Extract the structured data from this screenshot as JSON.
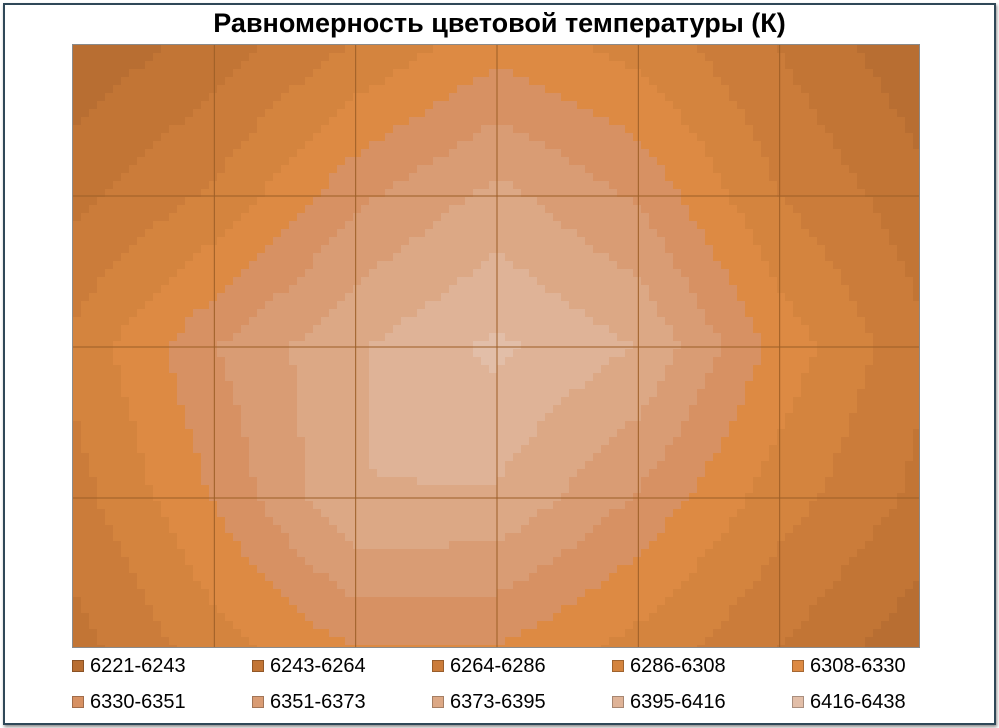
{
  "chart_data": {
    "type": "heatmap",
    "title": "Равномерность цветовой температуры (К)",
    "xlabel": "",
    "ylabel": "",
    "unit": "К",
    "grid_size": [
      7,
      5
    ],
    "grid": true,
    "legend_position": "bottom",
    "values": [
      [
        6226,
        6251,
        6288,
        6322,
        6300,
        6263,
        6226
      ],
      [
        6258,
        6290,
        6346,
        6380,
        6348,
        6286,
        6250
      ],
      [
        6292,
        6350,
        6393,
        6421,
        6394,
        6322,
        6268
      ],
      [
        6276,
        6332,
        6395,
        6392,
        6348,
        6296,
        6258
      ],
      [
        6255,
        6298,
        6330,
        6328,
        6300,
        6264,
        6228
      ]
    ],
    "legend": [
      {
        "label": "6221-6243",
        "min": 6221,
        "max": 6243,
        "color": "#b86e32"
      },
      {
        "label": "6243-6264",
        "min": 6243,
        "max": 6264,
        "color": "#c27535"
      },
      {
        "label": "6264-6286",
        "min": 6264,
        "max": 6286,
        "color": "#cb7c3a"
      },
      {
        "label": "6286-6308",
        "min": 6286,
        "max": 6308,
        "color": "#d4843e"
      },
      {
        "label": "6308-6330",
        "min": 6308,
        "max": 6330,
        "color": "#dd8a43"
      },
      {
        "label": "6330-6351",
        "min": 6330,
        "max": 6351,
        "color": "#d79163"
      },
      {
        "label": "6351-6373",
        "min": 6351,
        "max": 6373,
        "color": "#d99c74"
      },
      {
        "label": "6373-6395",
        "min": 6373,
        "max": 6395,
        "color": "#dca885"
      },
      {
        "label": "6395-6416",
        "min": 6395,
        "max": 6416,
        "color": "#dfb397"
      },
      {
        "label": "6416-6438",
        "min": 6416,
        "max": 6438,
        "color": "#e2bea8"
      }
    ],
    "grid_line_color": "#9c5e26"
  }
}
